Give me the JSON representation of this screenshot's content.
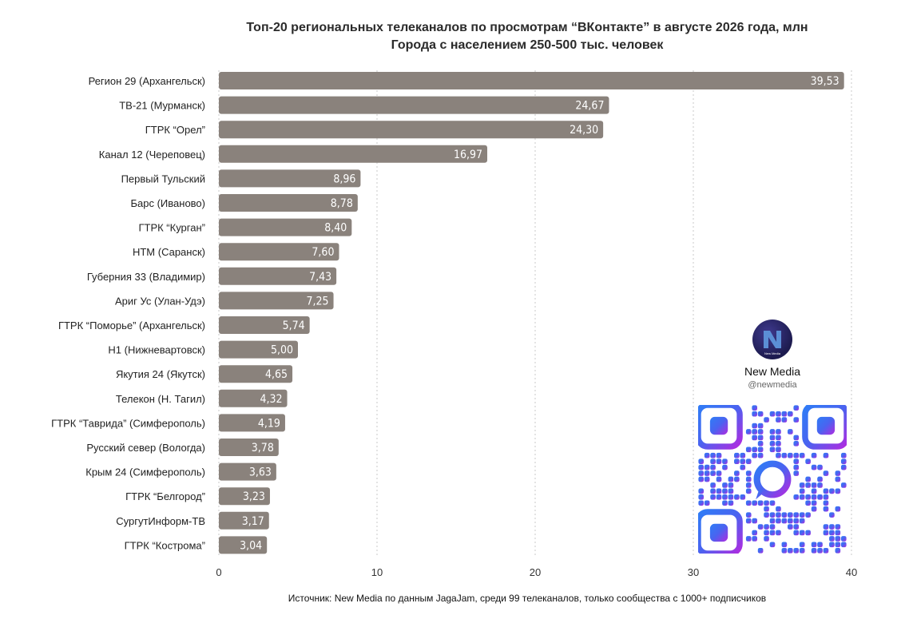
{
  "chart_data": {
    "type": "bar",
    "orientation": "horizontal",
    "title": "Топ-20 региональных телеканалов по просмотрам “ВКонтакте” в августе 2026 года, млн",
    "subtitle": "Города с населением 250-500 тыс. человек",
    "xlim": [
      0,
      40
    ],
    "xticks": [
      "0",
      "10",
      "20",
      "30",
      "40"
    ],
    "grid": "vertical dotted",
    "bar_color": "#8a827c",
    "categories": [
      "Регион 29 (Архангельск)",
      "ТВ-21 (Мурманск)",
      "ГТРК “Орел”",
      "Канал 12 (Череповец)",
      "Первый Тульский",
      "Барс (Иваново)",
      "ГТРК “Курган”",
      "НТМ (Саранск)",
      "Губерния 33 (Владимир)",
      "Ариг Ус (Улан-Удэ)",
      "ГТРК “Поморье” (Архангельск)",
      "Н1 (Нижневартовск)",
      "Якутия 24 (Якутск)",
      "Телекон (Н. Тагил)",
      "ГТРК “Таврида” (Симферополь)",
      "Русский север (Вологда)",
      "Крым 24 (Симферополь)",
      "ГТРК “Белгород”",
      "СургутИнформ-ТВ",
      "ГТРК “Кострома”"
    ],
    "values": [
      39.53,
      24.67,
      24.3,
      16.97,
      8.96,
      8.78,
      8.4,
      7.6,
      7.43,
      7.25,
      5.74,
      5.0,
      4.65,
      4.32,
      4.19,
      3.78,
      3.63,
      3.23,
      3.17,
      3.04
    ],
    "value_labels": [
      "39,53",
      "24,67",
      "24,30",
      "16,97",
      "8,96",
      "8,78",
      "8,40",
      "7,60",
      "7,43",
      "7,25",
      "5,74",
      "5,00",
      "4,65",
      "4,32",
      "4,19",
      "3,78",
      "3,63",
      "3,23",
      "3,17",
      "3,04"
    ],
    "source": "Источник: New Media по данным JagaJam, среди 99 телеканалов, только сообщества с 1000+ подписчиков"
  },
  "brand": {
    "name": "New Media",
    "handle": "@newmedia",
    "logo_text": "New Media",
    "logo_icon": "n-logo-icon",
    "qr_icon": "qr-code-icon"
  }
}
